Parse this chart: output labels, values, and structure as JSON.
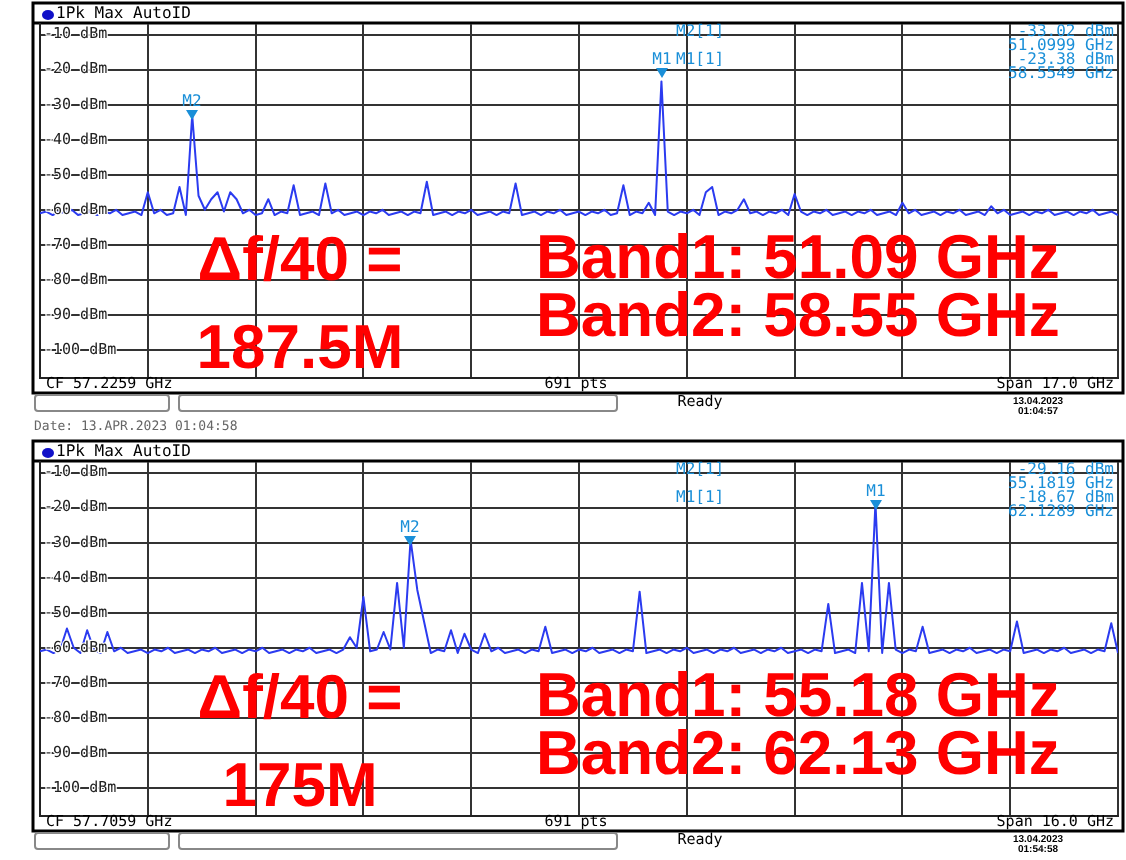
{
  "chart_data": [
    {
      "type": "line",
      "grid": true,
      "tick_labels": "y",
      "categories": [
        null,
        null,
        null,
        null,
        null,
        null,
        null,
        null,
        null,
        null,
        null,
        null,
        null,
        null,
        null,
        null,
        null,
        null,
        null,
        null,
        null,
        null,
        null,
        null,
        null,
        null,
        null,
        null,
        null,
        null,
        null,
        null,
        null,
        null,
        null,
        null,
        null,
        null,
        null,
        null,
        null,
        null,
        null,
        null,
        null,
        null,
        null,
        null,
        null,
        null,
        null,
        null,
        null,
        null,
        null,
        null,
        null,
        null,
        null,
        null,
        null,
        null,
        null,
        null,
        null,
        null,
        null,
        null,
        null,
        null,
        null,
        null,
        null,
        null,
        null,
        null,
        null,
        null,
        null,
        null,
        null,
        null,
        null,
        null,
        null,
        null,
        null,
        null,
        null,
        null,
        null,
        null,
        null,
        null,
        null,
        null,
        null,
        null,
        null,
        null,
        null,
        null,
        null,
        null,
        null,
        null,
        null,
        null,
        null,
        null,
        null,
        null,
        null,
        null,
        null,
        null,
        null,
        null,
        null,
        null,
        null,
        null,
        null,
        null,
        null,
        null,
        null,
        null,
        null,
        null,
        null,
        null,
        null,
        null,
        null,
        null,
        null,
        null,
        null,
        null,
        null,
        null,
        null,
        null,
        null,
        null,
        null,
        null,
        null,
        null,
        null,
        null,
        null,
        null,
        null,
        null,
        null,
        null,
        null,
        null,
        null,
        null,
        null,
        null,
        null,
        null,
        null,
        null,
        null,
        null,
        null
      ],
      "ylim": [
        -108,
        -7
      ],
      "yticks": [
        {
          "value": -10,
          "label": "-10 dBm"
        },
        {
          "value": -20,
          "label": "-20 dBm"
        },
        {
          "value": -30,
          "label": "-30 dBm"
        },
        {
          "value": -40,
          "label": "-40 dBm"
        },
        {
          "value": -50,
          "label": "-50 dBm"
        },
        {
          "value": -60,
          "label": "-60 dBm"
        },
        {
          "value": -70,
          "label": "-70 dBm"
        },
        {
          "value": -80,
          "label": "-80 dBm"
        },
        {
          "value": -90,
          "label": "-90 dBm"
        },
        {
          "value": -100,
          "label": "-100 dBm"
        }
      ],
      "series": [
        {
          "color": "#2b3bf0",
          "values": [
            -61,
            -60.5,
            -61.5,
            -60.5,
            -61,
            -60,
            -61.5,
            -61,
            -60.5,
            -61.5,
            -60.5,
            -61,
            -60,
            -61.5,
            -61,
            -60.5,
            -61.5,
            -55,
            -61,
            -60,
            -61.5,
            -61,
            -53.5,
            -61.5,
            -33.02,
            -56,
            -60,
            -57,
            -55,
            -60.5,
            -55,
            -57,
            -61,
            -60,
            -61.5,
            -61,
            -57,
            -61.5,
            -60.5,
            -61,
            -53,
            -61.5,
            -61,
            -60.5,
            -61.5,
            -52.5,
            -61,
            -60,
            -61.5,
            -61,
            -60.5,
            -61.5,
            -60.5,
            -61,
            -60,
            -61.5,
            -61,
            -60.5,
            -61.5,
            -60.5,
            -61,
            -52,
            -61.5,
            -61,
            -60.5,
            -61.5,
            -60.5,
            -61,
            -60,
            -61.5,
            -61,
            -60.5,
            -61.5,
            -60.5,
            -61,
            -52.5,
            -61.5,
            -61,
            -60.5,
            -61.5,
            -60.5,
            -61,
            -60,
            -61.5,
            -61,
            -60.5,
            -61.5,
            -60.5,
            -61,
            -60,
            -61.5,
            -61,
            -53,
            -61.5,
            -60.5,
            -61,
            -58,
            -61.5,
            -23.38,
            -60.5,
            -61.5,
            -60.5,
            -61,
            -60,
            -61.5,
            -55,
            -53.5,
            -61.5,
            -60.5,
            -61,
            -60,
            -57,
            -61,
            -60.5,
            -61.5,
            -60.5,
            -61,
            -60,
            -61.5,
            -55.5,
            -60.5,
            -61.5,
            -60.5,
            -61,
            -60,
            -61.5,
            -61,
            -60.5,
            -61.5,
            -60.5,
            -61,
            -60,
            -61.5,
            -61,
            -60.5,
            -61.5,
            -58,
            -61,
            -60,
            -61.5,
            -61,
            -60.5,
            -61.5,
            -60.5,
            -61,
            -60,
            -61.5,
            -61,
            -60.5,
            -61.5,
            -59,
            -61,
            -60,
            -61.5,
            -61,
            -60.5,
            -61.5,
            -60.5,
            -61,
            -60,
            -61.5,
            -61,
            -60.5,
            -61.5,
            -60.5,
            -61,
            -60,
            -61.5,
            -61,
            -60.5,
            -61.5
          ]
        }
      ],
      "annotations": [
        "1Pk Max AutoID",
        "M2[1]",
        "-33.02 dBm",
        "51.0999 GHz",
        "M1[1]",
        "-23.38 dBm",
        "58.5549 GHz",
        "CF 57.2259 GHz",
        "691 pts",
        "Span 17.0 GHz",
        "Ready",
        "13.04.2023 01:04:57",
        "Δf/40 =",
        "187.5M",
        "Band1: 51.09 GHz",
        "Band2: 58.55 GHz",
        "Date: 13.APR.2023  01:04:58",
        "M2",
        "M1"
      ]
    },
    {
      "type": "line",
      "grid": true,
      "tick_labels": "y",
      "categories": [
        null,
        null,
        null,
        null,
        null,
        null,
        null,
        null,
        null,
        null,
        null,
        null,
        null,
        null,
        null,
        null,
        null,
        null,
        null,
        null,
        null,
        null,
        null,
        null,
        null,
        null,
        null,
        null,
        null,
        null,
        null,
        null,
        null,
        null,
        null,
        null,
        null,
        null,
        null,
        null,
        null,
        null,
        null,
        null,
        null,
        null,
        null,
        null,
        null,
        null,
        null,
        null,
        null,
        null,
        null,
        null,
        null,
        null,
        null,
        null,
        null,
        null,
        null,
        null,
        null,
        null,
        null,
        null,
        null,
        null,
        null,
        null,
        null,
        null,
        null,
        null,
        null,
        null,
        null,
        null,
        null,
        null,
        null,
        null,
        null,
        null,
        null,
        null,
        null,
        null,
        null,
        null,
        null,
        null,
        null,
        null,
        null,
        null,
        null,
        null,
        null,
        null,
        null,
        null,
        null,
        null,
        null,
        null,
        null,
        null,
        null,
        null,
        null,
        null,
        null,
        null,
        null,
        null,
        null,
        null,
        null,
        null,
        null,
        null,
        null,
        null,
        null,
        null,
        null,
        null,
        null,
        null,
        null,
        null,
        null,
        null,
        null,
        null,
        null,
        null,
        null,
        null,
        null,
        null,
        null,
        null,
        null,
        null,
        null,
        null,
        null,
        null,
        null,
        null,
        null,
        null,
        null,
        null,
        null,
        null,
        null
      ],
      "ylim": [
        -108,
        -7
      ],
      "yticks": [
        {
          "value": -10,
          "label": "-10 dBm"
        },
        {
          "value": -20,
          "label": "-20 dBm"
        },
        {
          "value": -30,
          "label": "-30 dBm"
        },
        {
          "value": -40,
          "label": "-40 dBm"
        },
        {
          "value": -50,
          "label": "-50 dBm"
        },
        {
          "value": -60,
          "label": "-60 dBm"
        },
        {
          "value": -70,
          "label": "-70 dBm"
        },
        {
          "value": -80,
          "label": "-80 dBm"
        },
        {
          "value": -90,
          "label": "-90 dBm"
        },
        {
          "value": -100,
          "label": "-100 dBm"
        }
      ],
      "series": [
        {
          "color": "#2b3bf0",
          "values": [
            -61,
            -60.5,
            -61.5,
            -60.5,
            -54.5,
            -60,
            -61.5,
            -55,
            -60.5,
            -61.5,
            -55.5,
            -61,
            -60,
            -61.5,
            -61,
            -60.5,
            -61.5,
            -60.5,
            -61,
            -60,
            -61.5,
            -61,
            -60.5,
            -61.5,
            -60.5,
            -61,
            -60,
            -61.5,
            -61,
            -60.5,
            -61.5,
            -60.5,
            -61,
            -60,
            -61.5,
            -61,
            -60.5,
            -61.5,
            -60.5,
            -61,
            -60,
            -61.5,
            -61,
            -60.5,
            -61.5,
            -60.5,
            -57,
            -60,
            -45.5,
            -61,
            -60.5,
            -55.5,
            -60.5,
            -41.5,
            -60,
            -29.16,
            -43.5,
            -52.5,
            -61.5,
            -60.5,
            -61,
            -55,
            -61.5,
            -56,
            -60.5,
            -61.5,
            -56,
            -61,
            -60,
            -61.5,
            -61,
            -60.5,
            -61.5,
            -60.5,
            -61,
            -54,
            -61.5,
            -61,
            -60.5,
            -61.5,
            -60.5,
            -61,
            -60,
            -61.5,
            -61,
            -60.5,
            -61.5,
            -60.5,
            -61,
            -44,
            -61.5,
            -61,
            -60.5,
            -61.5,
            -60.5,
            -61,
            -60,
            -61.5,
            -61,
            -60.5,
            -61.5,
            -60.5,
            -61,
            -60,
            -61.5,
            -61,
            -60.5,
            -61.5,
            -60.5,
            -61,
            -60,
            -61.5,
            -61,
            -60.5,
            -61.5,
            -60.5,
            -61,
            -47.5,
            -61.5,
            -61,
            -60.5,
            -61.5,
            -41.5,
            -61,
            -18.67,
            -61.5,
            -41.5,
            -60.5,
            -61.5,
            -60.5,
            -61,
            -54,
            -61.5,
            -61,
            -60.5,
            -61.5,
            -60.5,
            -61,
            -60,
            -61.5,
            -61,
            -60.5,
            -61.5,
            -60.5,
            -61,
            -52.5,
            -61.5,
            -61,
            -60.5,
            -61.5,
            -60.5,
            -61,
            -60,
            -61.5,
            -61,
            -60.5,
            -61.5,
            -60.5,
            -61,
            -53,
            -61.5
          ]
        }
      ],
      "annotations": [
        "1Pk Max AutoID",
        "M2[1]",
        "-29.16 dBm",
        "55.1819 GHz",
        "M1[1]",
        "-18.67 dBm",
        "62.1289 GHz",
        "CF 57.7059 GHz",
        "691 pts",
        "Span 16.0 GHz",
        "Ready",
        "13.04.2023 01:54:58",
        "Δf/40 =",
        "175M",
        "Band1: 55.18 GHz",
        "Band2: 62.13 GHz",
        "M2",
        "M1"
      ]
    }
  ]
}
